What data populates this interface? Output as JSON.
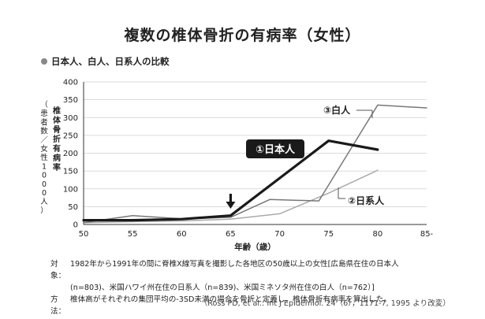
{
  "title": "複数の椎体骨折の有病率（女性）",
  "subtitle": "日本人、白人、日系人の比較",
  "chart_data": {
    "type": "line",
    "x": [
      50,
      55,
      60,
      65,
      70,
      75,
      80,
      85
    ],
    "xticks": [
      "50",
      "55",
      "60",
      "65",
      "70",
      "75",
      "80",
      "85-"
    ],
    "yticks": [
      0,
      50,
      100,
      150,
      200,
      250,
      300,
      350,
      400
    ],
    "xlim": [
      50,
      85
    ],
    "ylim": [
      0,
      400
    ],
    "xlabel": "年齢（歳）",
    "ylabel_top": "椎体骨折有病率",
    "ylabel_side": "（患者数／女性1000人）",
    "grid": "horizontal",
    "series": [
      {
        "name": "①日本人",
        "color": "#1a1a1a",
        "width": 3.2,
        "points": [
          [
            50,
            12
          ],
          [
            55,
            12
          ],
          [
            60,
            15
          ],
          [
            65,
            25
          ],
          [
            75,
            235
          ],
          [
            80,
            210
          ]
        ]
      },
      {
        "name": "③白人",
        "color": "#777777",
        "width": 1.5,
        "points": [
          [
            50,
            5
          ],
          [
            55,
            25
          ],
          [
            60,
            16
          ],
          [
            65,
            20
          ],
          [
            69,
            70
          ],
          [
            74,
            66
          ],
          [
            80,
            335
          ],
          [
            85,
            327
          ]
        ]
      },
      {
        "name": "②日系人",
        "color": "#aaaaaa",
        "width": 1.5,
        "points": [
          [
            50,
            5
          ],
          [
            55,
            8
          ],
          [
            60,
            10
          ],
          [
            65,
            15
          ],
          [
            70,
            30
          ],
          [
            75,
            88
          ],
          [
            80,
            152
          ]
        ]
      }
    ],
    "annotations": {
      "arrow_at_x": 65
    }
  },
  "notes": {
    "subject_label": "対象：",
    "subject_line1": "1982年から1991年の間に脊椎X線写真を撮影した各地区の50歳以上の女性[広島県在住の日本人",
    "subject_line2": "(n=803)、米国ハワイ州在住の日系人（n=839)、米国ミネソタ州在住の白人（n=762）]",
    "method_label": "方法：",
    "method_text": "椎体高がそれぞれの集団平均の-3SD未満の場合を骨折と定義し、椎体骨折有病率を算出した。"
  },
  "source": "（Ross PD, et al.: Int J Epidemiol. 24（6），1171-7, 1995 より改変）"
}
